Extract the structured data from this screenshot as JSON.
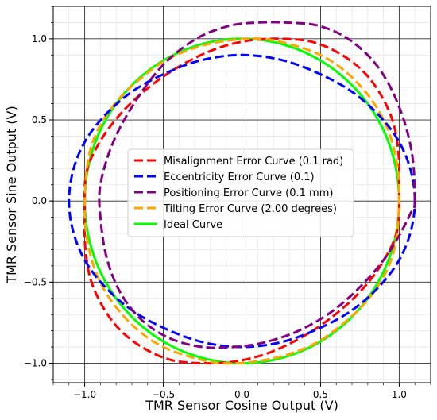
{
  "chart_data": {
    "type": "line",
    "xlabel": "TMR Sensor Cosine Output (V)",
    "ylabel": "TMR Sensor Sine Output (V)",
    "xlim": [
      -1.2,
      1.2
    ],
    "ylim": [
      -1.12,
      1.2
    ],
    "xticks": [
      -1.0,
      -0.5,
      0.0,
      0.5,
      1.0
    ],
    "xtick_labels": [
      "−1.0",
      "−0.5",
      "0.0",
      "0.5",
      "1.0"
    ],
    "yticks": [
      -1.0,
      -0.5,
      0.0,
      0.5,
      1.0
    ],
    "ytick_labels": [
      "−1.0",
      "−0.5",
      "0.0",
      "0.5",
      "1.0"
    ],
    "grid": true,
    "minor_grid": true,
    "legend_position": "center",
    "series": [
      {
        "name": "Misalignment Error Curve (0.1 rad)",
        "color": "#ff0000",
        "style": "dashed",
        "x": [
          1.0,
          0.995,
          0.96,
          0.88,
          0.77,
          0.62,
          0.45,
          0.26,
          0.05,
          -0.16,
          -0.38,
          -0.58,
          -0.76,
          -0.9,
          -0.99,
          -1.0,
          -0.995,
          -0.96,
          -0.88,
          -0.77,
          -0.62,
          -0.45,
          -0.26,
          -0.05,
          0.16,
          0.38,
          0.58,
          0.76,
          0.9,
          0.99,
          1.0
        ],
        "y": [
          0.1,
          0.3,
          0.49,
          0.66,
          0.8,
          0.91,
          0.98,
          1.0,
          0.99,
          0.94,
          0.84,
          0.71,
          0.55,
          0.37,
          0.17,
          -0.1,
          -0.3,
          -0.49,
          -0.66,
          -0.8,
          -0.91,
          -0.98,
          -1.0,
          -0.99,
          -0.94,
          -0.84,
          -0.71,
          -0.55,
          -0.37,
          -0.17,
          0.1
        ]
      },
      {
        "name": "Eccentricity Error Curve (0.1)",
        "color": "#0000ff",
        "style": "dashed",
        "x": [
          1.1,
          1.07,
          0.99,
          0.86,
          0.69,
          0.48,
          0.25,
          0.0,
          -0.25,
          -0.48,
          -0.69,
          -0.86,
          -0.99,
          -1.07,
          -1.1,
          -1.07,
          -0.99,
          -0.86,
          -0.69,
          -0.48,
          -0.25,
          0.0,
          0.25,
          0.48,
          0.69,
          0.86,
          0.99,
          1.07,
          1.1
        ],
        "y": [
          0.0,
          0.2,
          0.38,
          0.54,
          0.68,
          0.79,
          0.87,
          0.9,
          0.87,
          0.79,
          0.68,
          0.54,
          0.38,
          0.2,
          0.0,
          -0.2,
          -0.38,
          -0.54,
          -0.68,
          -0.79,
          -0.87,
          -0.9,
          -0.87,
          -0.79,
          -0.68,
          -0.54,
          -0.38,
          -0.2,
          0.0
        ]
      },
      {
        "name": "Positioning Error Curve (0.1 mm)",
        "color": "#800080",
        "style": "dashed",
        "x": [
          1.1,
          1.08,
          1.0,
          0.87,
          0.69,
          0.49,
          0.28,
          0.1,
          -0.08,
          -0.29,
          -0.5,
          -0.68,
          -0.82,
          -0.9,
          -0.9,
          -0.86,
          -0.77,
          -0.63,
          -0.45,
          -0.25,
          -0.05,
          0.15,
          0.36,
          0.56,
          0.73,
          0.88,
          0.99,
          1.07,
          1.1
        ],
        "y": [
          0.0,
          0.3,
          0.58,
          0.82,
          0.99,
          1.08,
          1.1,
          1.1,
          1.08,
          1.0,
          0.84,
          0.61,
          0.36,
          0.1,
          -0.1,
          -0.35,
          -0.57,
          -0.74,
          -0.85,
          -0.9,
          -0.9,
          -0.87,
          -0.8,
          -0.69,
          -0.55,
          -0.39,
          -0.23,
          -0.08,
          0.0
        ]
      },
      {
        "name": "Tilting Error Curve (2.00 degrees)",
        "color": "#ffa500",
        "style": "dashed",
        "x": [
          1.0,
          0.98,
          0.92,
          0.82,
          0.68,
          0.52,
          0.33,
          0.13,
          -0.08,
          -0.28,
          -0.48,
          -0.65,
          -0.8,
          -0.92,
          -0.98,
          -1.0,
          -0.98,
          -0.92,
          -0.82,
          -0.68,
          -0.52,
          -0.33,
          -0.13,
          0.08,
          0.28,
          0.48,
          0.65,
          0.8,
          0.92,
          0.98,
          1.0
        ],
        "y": [
          0.05,
          0.26,
          0.46,
          0.63,
          0.78,
          0.89,
          0.96,
          1.0,
          0.99,
          0.95,
          0.87,
          0.75,
          0.61,
          0.43,
          0.24,
          -0.05,
          -0.26,
          -0.46,
          -0.63,
          -0.78,
          -0.89,
          -0.96,
          -1.0,
          -0.99,
          -0.95,
          -0.87,
          -0.75,
          -0.61,
          -0.43,
          -0.24,
          0.05
        ]
      },
      {
        "name": "Ideal Curve",
        "color": "#00ff00",
        "style": "solid",
        "x": [
          1.0,
          0.978,
          0.914,
          0.809,
          0.669,
          0.5,
          0.309,
          0.105,
          -0.105,
          -0.309,
          -0.5,
          -0.669,
          -0.809,
          -0.914,
          -0.978,
          -1.0,
          -0.978,
          -0.914,
          -0.809,
          -0.669,
          -0.5,
          -0.309,
          -0.105,
          0.105,
          0.309,
          0.5,
          0.669,
          0.809,
          0.914,
          0.978,
          1.0
        ],
        "y": [
          0.0,
          0.208,
          0.407,
          0.588,
          0.743,
          0.866,
          0.951,
          0.995,
          0.995,
          0.951,
          0.866,
          0.743,
          0.588,
          0.407,
          0.208,
          0.0,
          -0.208,
          -0.407,
          -0.588,
          -0.743,
          -0.866,
          -0.951,
          -0.995,
          -0.995,
          -0.951,
          -0.866,
          -0.743,
          -0.588,
          -0.407,
          -0.208,
          0.0
        ]
      }
    ]
  }
}
